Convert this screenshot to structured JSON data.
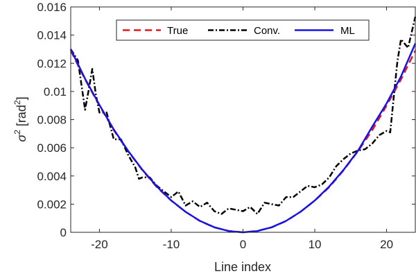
{
  "chart_data": {
    "type": "line",
    "xlabel": "Line index",
    "ylabel": "σ² [rad²]",
    "ylabel_parts": {
      "symbol": "σ",
      "sym_sup": "2",
      "unit_open": " [rad",
      "unit_sup": "2",
      "unit_close": "]"
    },
    "xlim": [
      -24,
      24
    ],
    "ylim": [
      0,
      0.016
    ],
    "xticks": [
      -20,
      -10,
      0,
      10,
      20
    ],
    "xtick_labels": [
      "-20",
      "-10",
      "0",
      "10",
      "20"
    ],
    "yticks": [
      0,
      0.002,
      0.004,
      0.006,
      0.008,
      0.01,
      0.012,
      0.014,
      0.016
    ],
    "ytick_labels": [
      "0",
      "0.002",
      "0.004",
      "0.006",
      "0.008",
      "0.01",
      "0.012",
      "0.014",
      "0.016"
    ],
    "grid": false,
    "legend": {
      "placement": "top-center",
      "orientation": "horizontal"
    },
    "series": [
      {
        "name": "True",
        "color": "#e8141c",
        "style": "dashed",
        "x": [
          -24,
          -22,
          -20,
          -18,
          -16,
          -14,
          -12,
          -10,
          -8,
          -6,
          -4,
          -2,
          0,
          2,
          4,
          6,
          8,
          10,
          12,
          14,
          16,
          18,
          20,
          22,
          24
        ],
        "y": [
          0.0129,
          0.01085,
          0.009,
          0.00725,
          0.00575,
          0.0044,
          0.0032,
          0.00225,
          0.00145,
          0.0008,
          0.00035,
          0.0001,
          0.0,
          0.0001,
          0.00035,
          0.0008,
          0.00145,
          0.00225,
          0.0032,
          0.0044,
          0.00575,
          0.00725,
          0.009,
          0.01085,
          0.0129
        ]
      },
      {
        "name": "Conv.",
        "color": "#000000",
        "style": "dashdot",
        "x": [
          -24,
          -23,
          -22,
          -21.5,
          -21,
          -20.5,
          -20,
          -19.5,
          -19,
          -18,
          -17,
          -16,
          -15,
          -14.5,
          -14,
          -13,
          -12,
          -11,
          -10,
          -9,
          -8,
          -7,
          -6,
          -5,
          -4,
          -3,
          -2,
          -1,
          0,
          1,
          2,
          3,
          4,
          5,
          6,
          7,
          8,
          9,
          10,
          11,
          12,
          13,
          14,
          15,
          16,
          17,
          18,
          19,
          20,
          20.5,
          21,
          21.5,
          22,
          22.5,
          23,
          24
        ],
        "y": [
          0.013,
          0.0122,
          0.0087,
          0.0101,
          0.0116,
          0.0098,
          0.0085,
          0.0085,
          0.0085,
          0.0066,
          0.0066,
          0.0055,
          0.0046,
          0.0038,
          0.0039,
          0.0039,
          0.0033,
          0.0029,
          0.0025,
          0.0029,
          0.0019,
          0.0022,
          0.0018,
          0.0021,
          0.0015,
          0.0013,
          0.0017,
          0.0016,
          0.0015,
          0.0018,
          0.0013,
          0.0021,
          0.002,
          0.0019,
          0.0025,
          0.0025,
          0.0029,
          0.0033,
          0.0032,
          0.0034,
          0.0039,
          0.0047,
          0.0052,
          0.0056,
          0.0058,
          0.0059,
          0.0063,
          0.0069,
          0.0072,
          0.0071,
          0.0096,
          0.0121,
          0.0137,
          0.0134,
          0.0131,
          0.0153
        ]
      },
      {
        "name": "ML",
        "color": "#1414e8",
        "style": "solid",
        "x": [
          -24,
          -22,
          -20,
          -18,
          -16,
          -14,
          -12,
          -10,
          -8,
          -6,
          -4,
          -2,
          0,
          2,
          4,
          6,
          8,
          10,
          12,
          14,
          16,
          18,
          20,
          22,
          24
        ],
        "y": [
          0.013,
          0.0109,
          0.00905,
          0.0073,
          0.00578,
          0.00443,
          0.00325,
          0.00226,
          0.00145,
          0.00081,
          0.00036,
          9e-05,
          0.0,
          9e-05,
          0.00036,
          0.00081,
          0.00145,
          0.00226,
          0.00325,
          0.00443,
          0.00578,
          0.0075,
          0.00915,
          0.01105,
          0.0134
        ]
      }
    ]
  }
}
